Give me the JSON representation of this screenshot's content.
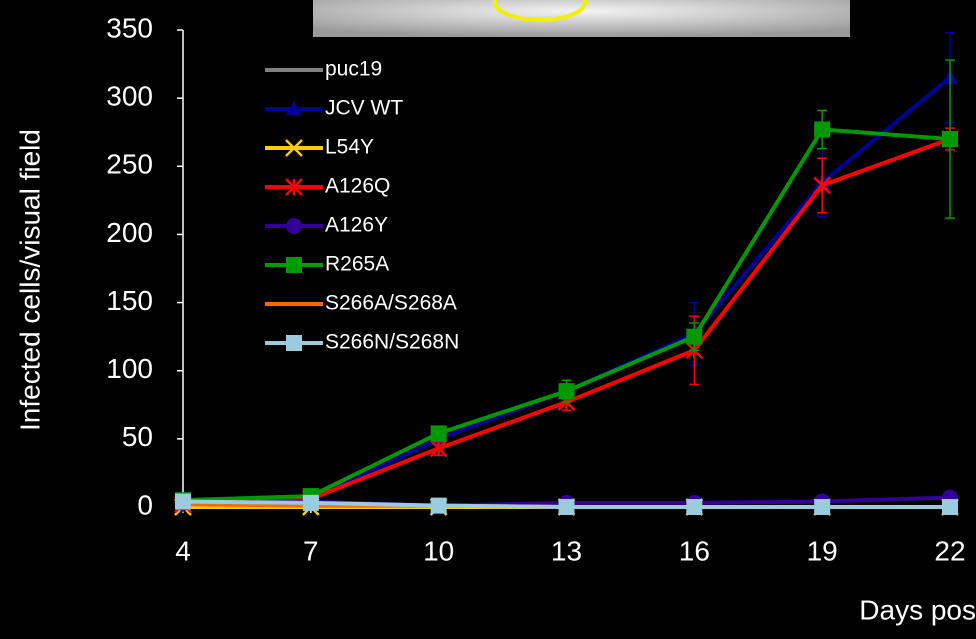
{
  "chart_data": {
    "type": "line",
    "ylabel": "Infected cells/visual field",
    "xlabel": "Days pos",
    "x": [
      4,
      7,
      10,
      13,
      16,
      19,
      22
    ],
    "xlim": [
      4,
      22
    ],
    "xticks": [
      4,
      7,
      10,
      13,
      16,
      19,
      22
    ],
    "ylim": [
      0,
      350
    ],
    "yticks": [
      0,
      50,
      100,
      150,
      200,
      250,
      300,
      350
    ],
    "legend": "top-left",
    "series": [
      {
        "name": "puc19",
        "color": "#808080",
        "marker": "none",
        "values": [
          0,
          0,
          0,
          0,
          0,
          0,
          0
        ]
      },
      {
        "name": "JCV WT",
        "color": "#000099",
        "marker": "triangle",
        "values": [
          4,
          5,
          50,
          85,
          127,
          238,
          315
        ],
        "errors": [
          0,
          0,
          3,
          8,
          23,
          25,
          33
        ]
      },
      {
        "name": "L54Y",
        "color": "#ffcc00",
        "marker": "x",
        "values": [
          0,
          0,
          0,
          0,
          0,
          0,
          0
        ]
      },
      {
        "name": "A126Q",
        "color": "#ff0000",
        "marker": "star",
        "values": [
          2,
          6,
          43,
          77,
          115,
          236,
          270
        ],
        "errors": [
          0,
          0,
          5,
          6,
          25,
          20,
          8
        ]
      },
      {
        "name": "A126Y",
        "color": "#330099",
        "marker": "circle",
        "values": [
          3,
          4,
          1,
          3,
          3,
          4,
          7
        ]
      },
      {
        "name": "R265A",
        "color": "#009900",
        "marker": "square",
        "values": [
          5,
          8,
          54,
          85,
          125,
          277,
          270
        ],
        "errors": [
          0,
          0,
          3,
          8,
          10,
          14,
          58
        ]
      },
      {
        "name": "S266A/S268A",
        "color": "#ff6600",
        "marker": "none",
        "values": [
          2,
          1,
          1,
          0,
          0,
          0,
          0
        ]
      },
      {
        "name": "S266N/S268N",
        "color": "#99ccdd",
        "marker": "square",
        "values": [
          4,
          3,
          1,
          0,
          0,
          0,
          0
        ]
      }
    ]
  }
}
